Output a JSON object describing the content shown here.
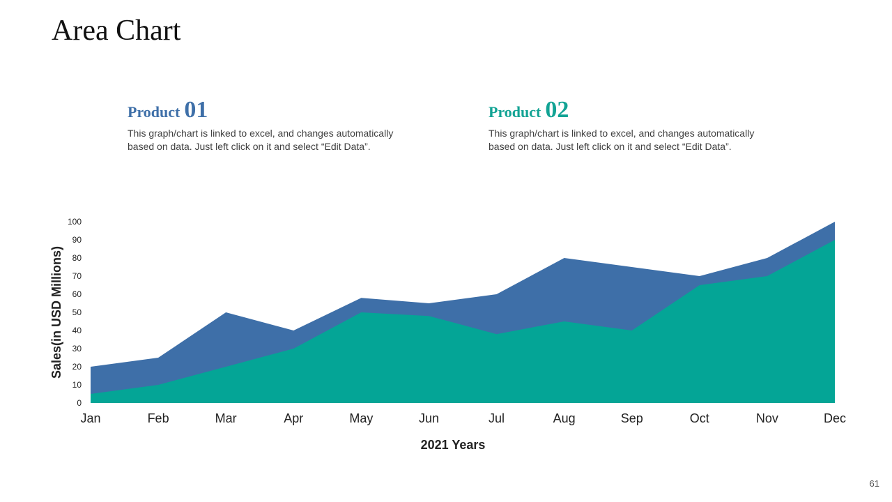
{
  "slide": {
    "title": "Area Chart",
    "page_number": "61"
  },
  "products": [
    {
      "label": "Product",
      "number": "01",
      "color": "#3E6FA8",
      "description": "This graph/chart is linked to excel, and changes automatically based on data. Just left click on it and select “Edit Data”."
    },
    {
      "label": "Product",
      "number": "02",
      "color": "#12A394",
      "description": "This graph/chart is linked to excel, and changes automatically based on data. Just left click on it and select “Edit Data”."
    }
  ],
  "chart_data": {
    "type": "area",
    "xlabel": "2021 Years",
    "ylabel": "Sales(in USD Millions)",
    "ylim": [
      0,
      100
    ],
    "yticks": [
      0,
      10,
      20,
      30,
      40,
      50,
      60,
      70,
      80,
      90,
      100
    ],
    "grid": false,
    "categories": [
      "Jan",
      "Feb",
      "Mar",
      "Apr",
      "May",
      "Jun",
      "Jul",
      "Aug",
      "Sep",
      "Oct",
      "Nov",
      "Dec"
    ],
    "series": [
      {
        "color": "#3E6FA8",
        "values": [
          20,
          25,
          50,
          40,
          58,
          55,
          60,
          80,
          75,
          70,
          80,
          100
        ]
      },
      {
        "color": "#04A596",
        "values": [
          5,
          10,
          20,
          30,
          50,
          48,
          38,
          45,
          40,
          65,
          70,
          90
        ]
      }
    ]
  }
}
